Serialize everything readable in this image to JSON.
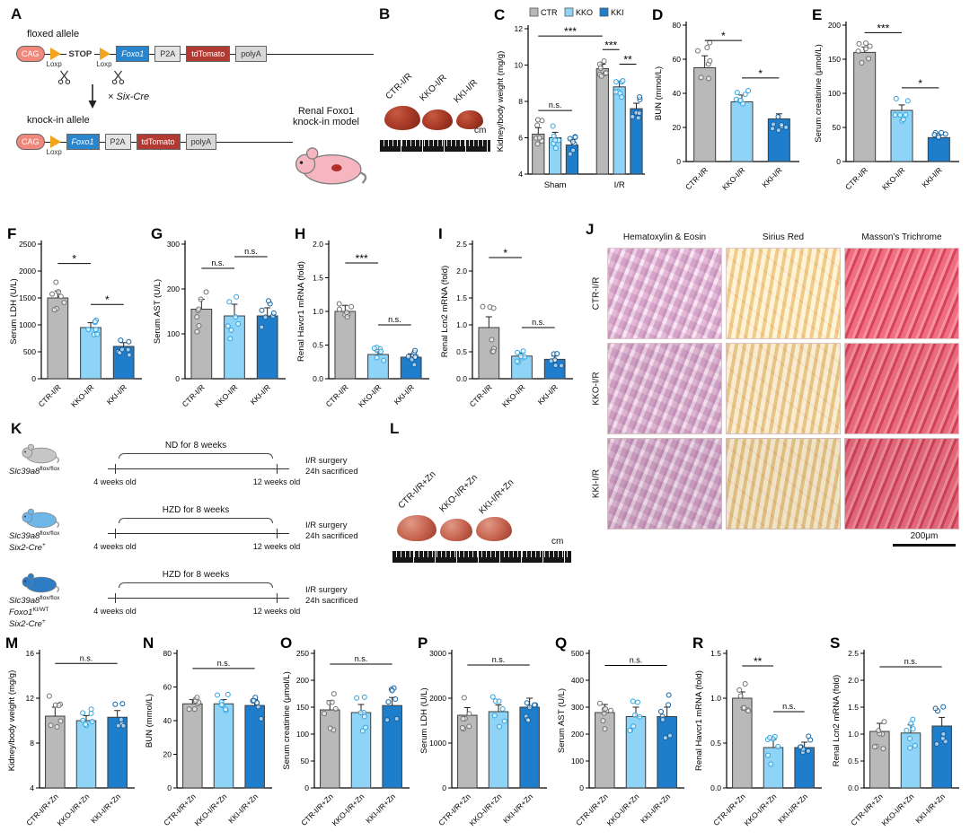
{
  "panel_a": {
    "label": "A",
    "floxed_label": "floxed allele",
    "knockin_label": "knock-in allele",
    "cross_label": "× Six-Cre",
    "model_label": "Renal Foxo1\nknock-in model",
    "floxed_row": [
      {
        "type": "box",
        "text": "CAG",
        "bg": "#f0897c",
        "fg": "#ffffff",
        "round": true
      },
      {
        "type": "loxp",
        "label": "Loxp"
      },
      {
        "type": "text",
        "text": "STOP"
      },
      {
        "type": "loxp",
        "label": "Loxp"
      },
      {
        "type": "box",
        "text": "Foxo1",
        "bg": "#2a86cc",
        "fg": "#ffffff",
        "italic": true
      },
      {
        "type": "box",
        "text": "P2A",
        "bg": "#e4e4e4",
        "fg": "#333333"
      },
      {
        "type": "box",
        "text": "tdTomato",
        "bg": "#b23a32",
        "fg": "#ffffff"
      },
      {
        "type": "box",
        "text": "polyA",
        "bg": "#d8d8d8",
        "fg": "#333333"
      }
    ],
    "knockin_row": [
      {
        "type": "box",
        "text": "CAG",
        "bg": "#f0897c",
        "fg": "#ffffff",
        "round": true
      },
      {
        "type": "loxp",
        "label": "Loxp"
      },
      {
        "type": "box",
        "text": "Foxo1",
        "bg": "#2a86cc",
        "fg": "#ffffff",
        "italic": true
      },
      {
        "type": "box",
        "text": "P2A",
        "bg": "#e4e4e4",
        "fg": "#333333"
      },
      {
        "type": "box",
        "text": "tdTomato",
        "bg": "#b23a32",
        "fg": "#ffffff"
      },
      {
        "type": "box",
        "text": "polyA",
        "bg": "#d8d8d8",
        "fg": "#333333"
      }
    ]
  },
  "panel_b": {
    "label": "B",
    "samples": [
      "CTR-I/R",
      "KKO-I/R",
      "KKI-I/R"
    ],
    "ruler_unit": "cm"
  },
  "panel_j": {
    "label": "J",
    "columns": [
      "Hematoxylin & Eosin",
      "Sirius Red",
      "Masson's Trichrome"
    ],
    "rows": [
      "CTR-I/R",
      "KKO-I/R",
      "KKI-I/R"
    ],
    "scale_bar": "200μm"
  },
  "panel_k": {
    "label": "K",
    "rows": [
      {
        "strain": [
          {
            "t": "Slc39a8",
            "sup": "flox/flox"
          }
        ],
        "diet": "ND for 8 weeks",
        "start": "4 weeks old",
        "end": "12 weeks old",
        "surgery": "I/R surgery",
        "sacrifice": "24h sacrificed",
        "mouse_color": "#c6c6c6"
      },
      {
        "strain": [
          {
            "t": "Slc39a8",
            "sup": "flox/flox"
          },
          {
            "t": "Six2-Cre",
            "sup": "+"
          }
        ],
        "diet": "HZD for 8 weeks",
        "start": "4 weeks old",
        "end": "12 weeks old",
        "surgery": "I/R surgery",
        "sacrifice": "24h sacrificed",
        "mouse_color": "#6fb6e9"
      },
      {
        "strain": [
          {
            "t": "Slc39a8",
            "sup": "flox/flox"
          },
          {
            "t": "Foxo1",
            "sup": "KI/WT"
          },
          {
            "t": "Six2-Cre",
            "sup": "+"
          }
        ],
        "diet": "HZD for 8 weeks",
        "start": "4 weeks old",
        "end": "12 weeks old",
        "surgery": "I/R surgery",
        "sacrifice": "24h sacrificed",
        "mouse_color": "#2e7cc3"
      }
    ]
  },
  "panel_l": {
    "label": "L",
    "samples": [
      "CTR-I/R+Zn",
      "KKO-I/R+Zn",
      "KKI-I/R+Zn"
    ],
    "ruler_unit": "cm"
  },
  "colors": {
    "ctr": "#b9b9b9",
    "kko": "#8fd4f6",
    "kki": "#1f7ecb"
  },
  "chart_data": [
    {
      "id": "c",
      "panel": "C",
      "type": "bar",
      "ylabel": "Kidney/body weight (mg/g)",
      "ylim": [
        4,
        12
      ],
      "yticks": [
        "4",
        "6",
        "8",
        "10",
        "12"
      ],
      "legend": [
        "CTR",
        "KKO",
        "KKI"
      ],
      "groups": [
        "Sham",
        "I/R"
      ],
      "categories": [
        "Sham CTR",
        "Sham KKO",
        "Sham KKI",
        "I/R CTR",
        "I/R KKO",
        "I/R KKI"
      ],
      "values": [
        6.2,
        6.0,
        5.6,
        9.8,
        8.8,
        7.6
      ],
      "errors": [
        0.35,
        0.3,
        0.3,
        0.25,
        0.3,
        0.3
      ],
      "colors": [
        "#b9b9b9",
        "#8fd4f6",
        "#1f7ecb",
        "#b9b9b9",
        "#8fd4f6",
        "#1f7ecb"
      ],
      "point_colors": [
        "#6f6f6f",
        "#2fa3e0",
        "#135f9e",
        "#6f6f6f",
        "#2fa3e0",
        "#135f9e"
      ],
      "sig": [
        {
          "a": 0,
          "b": 2,
          "y": 7.5,
          "label": "n.s."
        },
        {
          "a": 0,
          "b": 3,
          "y": 11.6,
          "label": "***"
        },
        {
          "a": 3,
          "b": 4,
          "y": 10.85,
          "label": "***"
        },
        {
          "a": 4,
          "b": 5,
          "y": 10.05,
          "label": "**"
        }
      ]
    },
    {
      "id": "d",
      "panel": "D",
      "type": "bar",
      "ylabel": "BUN (mmol/L)",
      "ylim": [
        0,
        80
      ],
      "yticks": [
        "0",
        "20",
        "40",
        "60",
        "80"
      ],
      "categories": [
        "CTR-I/R",
        "KKO-I/R",
        "KKI-I/R"
      ],
      "values": [
        55,
        35,
        25
      ],
      "errors": [
        7,
        4,
        3
      ],
      "colors": [
        "#b9b9b9",
        "#8fd4f6",
        "#1f7ecb"
      ],
      "point_colors": [
        "#6f6f6f",
        "#2fa3e0",
        "#135f9e"
      ],
      "sig": [
        {
          "a": 0,
          "b": 1,
          "y": 71,
          "label": "*"
        },
        {
          "a": 1,
          "b": 2,
          "y": 49,
          "label": "*"
        }
      ]
    },
    {
      "id": "e",
      "panel": "E",
      "type": "bar",
      "ylabel": "Serum creatinine (μmol/L)",
      "ylim": [
        0,
        200
      ],
      "yticks": [
        "0",
        "50",
        "100",
        "150",
        "200"
      ],
      "categories": [
        "CTR-I/R",
        "KKO-I/R",
        "KKI-I/R"
      ],
      "values": [
        160,
        75,
        35
      ],
      "errors": [
        8,
        8,
        4
      ],
      "colors": [
        "#b9b9b9",
        "#8fd4f6",
        "#1f7ecb"
      ],
      "point_colors": [
        "#6f6f6f",
        "#2fa3e0",
        "#135f9e"
      ],
      "sig": [
        {
          "a": 0,
          "b": 1,
          "y": 189,
          "label": "***"
        },
        {
          "a": 1,
          "b": 2,
          "y": 108,
          "label": "*"
        }
      ]
    },
    {
      "id": "f",
      "panel": "F",
      "type": "bar",
      "ylabel": "Serum LDH (U/L)",
      "ylim": [
        0,
        2500
      ],
      "yticks": [
        "0",
        "500",
        "1000",
        "1500",
        "2000",
        "2500"
      ],
      "categories": [
        "CTR-I/R",
        "KKO-I/R",
        "KKI-I/R"
      ],
      "values": [
        1500,
        950,
        600
      ],
      "errors": [
        130,
        90,
        70
      ],
      "colors": [
        "#b9b9b9",
        "#8fd4f6",
        "#1f7ecb"
      ],
      "point_colors": [
        "#6f6f6f",
        "#2fa3e0",
        "#135f9e"
      ],
      "sig": [
        {
          "a": 0,
          "b": 1,
          "y": 2140,
          "label": "*"
        },
        {
          "a": 1,
          "b": 2,
          "y": 1380,
          "label": "*"
        }
      ]
    },
    {
      "id": "g",
      "panel": "G",
      "type": "bar",
      "ylabel": "Serum AST (U/L)",
      "ylim": [
        0,
        300
      ],
      "yticks": [
        "0",
        "100",
        "200",
        "300"
      ],
      "categories": [
        "CTR-I/R",
        "KKO-I/R",
        "KKI-I/R"
      ],
      "values": [
        155,
        140,
        140
      ],
      "errors": [
        22,
        26,
        18
      ],
      "colors": [
        "#b9b9b9",
        "#8fd4f6",
        "#1f7ecb"
      ],
      "point_colors": [
        "#6f6f6f",
        "#2fa3e0",
        "#135f9e"
      ],
      "sig": [
        {
          "a": 0,
          "b": 1,
          "y": 246,
          "label": "n.s."
        },
        {
          "a": 1,
          "b": 2,
          "y": 272,
          "label": "n.s."
        }
      ]
    },
    {
      "id": "h",
      "panel": "H",
      "type": "bar",
      "ylabel": "Renal Havcr1 mRNA (fold)",
      "ylim": [
        0,
        2
      ],
      "yticks": [
        "0.0",
        "0.5",
        "1.0",
        "1.5",
        "2.0"
      ],
      "categories": [
        "CTR-I/R",
        "KKO-I/R",
        "KKI-I/R"
      ],
      "values": [
        1.0,
        0.36,
        0.32
      ],
      "errors": [
        0.09,
        0.05,
        0.05
      ],
      "colors": [
        "#b9b9b9",
        "#8fd4f6",
        "#1f7ecb"
      ],
      "point_colors": [
        "#6f6f6f",
        "#2fa3e0",
        "#135f9e"
      ],
      "sig": [
        {
          "a": 0,
          "b": 1,
          "y": 1.72,
          "label": "***"
        },
        {
          "a": 1,
          "b": 2,
          "y": 0.8,
          "label": "n.s."
        }
      ]
    },
    {
      "id": "i",
      "panel": "I",
      "type": "bar",
      "ylabel": "Renal Lcn2 mRNA (fold)",
      "ylim": [
        0,
        2.5
      ],
      "yticks": [
        "0.0",
        "0.5",
        "1.0",
        "1.5",
        "2.0",
        "2.5"
      ],
      "categories": [
        "CTR-I/R",
        "KKO-I/R",
        "KKI-I/R"
      ],
      "values": [
        0.95,
        0.42,
        0.36
      ],
      "errors": [
        0.2,
        0.06,
        0.06
      ],
      "colors": [
        "#b9b9b9",
        "#8fd4f6",
        "#1f7ecb"
      ],
      "point_colors": [
        "#6f6f6f",
        "#2fa3e0",
        "#135f9e"
      ],
      "sig": [
        {
          "a": 0,
          "b": 1,
          "y": 2.25,
          "label": "*"
        },
        {
          "a": 1,
          "b": 2,
          "y": 0.95,
          "label": "n.s."
        }
      ]
    },
    {
      "id": "m",
      "panel": "M",
      "type": "bar",
      "ylabel": "Kidney/body weight (mg/g)",
      "ylim": [
        4,
        16
      ],
      "yticks": [
        "4",
        "8",
        "12",
        "16"
      ],
      "categories": [
        "CTR-I/R+Zn",
        "KKO-I/R+Zn",
        "KKI-I/R+Zn"
      ],
      "values": [
        10.4,
        10.0,
        10.3
      ],
      "errors": [
        0.8,
        0.45,
        0.6
      ],
      "colors": [
        "#b9b9b9",
        "#8fd4f6",
        "#1f7ecb"
      ],
      "point_colors": [
        "#6f6f6f",
        "#2fa3e0",
        "#135f9e"
      ],
      "sig": [
        {
          "a": 0,
          "b": 2,
          "y": 15.1,
          "label": "n.s."
        }
      ]
    },
    {
      "id": "n",
      "panel": "N",
      "type": "bar",
      "ylabel": "BUN (mmol/L)",
      "ylim": [
        0,
        80
      ],
      "yticks": [
        "0",
        "20",
        "40",
        "60",
        "80"
      ],
      "categories": [
        "CTR-I/R+Zn",
        "KKO-I/R+Zn",
        "KKI-I/R+Zn"
      ],
      "values": [
        50,
        50,
        49
      ],
      "errors": [
        2.5,
        2.5,
        3.5
      ],
      "colors": [
        "#b9b9b9",
        "#8fd4f6",
        "#1f7ecb"
      ],
      "point_colors": [
        "#6f6f6f",
        "#2fa3e0",
        "#135f9e"
      ],
      "sig": [
        {
          "a": 0,
          "b": 2,
          "y": 71,
          "label": "n.s."
        }
      ]
    },
    {
      "id": "o",
      "panel": "O",
      "type": "bar",
      "ylabel": "Serum creatinine (μmol/L)",
      "ylim": [
        0,
        250
      ],
      "yticks": [
        "0",
        "50",
        "100",
        "150",
        "200",
        "250"
      ],
      "categories": [
        "CTR-I/R+Zn",
        "KKO-I/R+Zn",
        "KKI-I/R+Zn"
      ],
      "values": [
        145,
        140,
        153
      ],
      "errors": [
        17,
        15,
        15
      ],
      "colors": [
        "#b9b9b9",
        "#8fd4f6",
        "#1f7ecb"
      ],
      "point_colors": [
        "#6f6f6f",
        "#2fa3e0",
        "#135f9e"
      ],
      "sig": [
        {
          "a": 0,
          "b": 2,
          "y": 230,
          "label": "n.s."
        }
      ]
    },
    {
      "id": "p",
      "panel": "P",
      "type": "bar",
      "ylabel": "Serum LDH (U/L)",
      "ylim": [
        0,
        3000
      ],
      "yticks": [
        "0",
        "1000",
        "2000",
        "3000"
      ],
      "categories": [
        "CTR-I/R+Zn",
        "KKO-I/R+Zn",
        "KKI-I/R+Zn"
      ],
      "values": [
        1620,
        1700,
        1800
      ],
      "errors": [
        170,
        150,
        200
      ],
      "colors": [
        "#b9b9b9",
        "#8fd4f6",
        "#1f7ecb"
      ],
      "point_colors": [
        "#6f6f6f",
        "#2fa3e0",
        "#135f9e"
      ],
      "sig": [
        {
          "a": 0,
          "b": 2,
          "y": 2740,
          "label": "n.s."
        }
      ]
    },
    {
      "id": "q",
      "panel": "Q",
      "type": "bar",
      "ylabel": "Serum AST (U/L)",
      "ylim": [
        0,
        500
      ],
      "yticks": [
        "0",
        "100",
        "200",
        "300",
        "400",
        "500"
      ],
      "categories": [
        "CTR-I/R+Zn",
        "KKO-I/R+Zn",
        "KKI-I/R+Zn"
      ],
      "values": [
        280,
        265,
        265
      ],
      "errors": [
        30,
        35,
        35
      ],
      "colors": [
        "#b9b9b9",
        "#8fd4f6",
        "#1f7ecb"
      ],
      "point_colors": [
        "#6f6f6f",
        "#2fa3e0",
        "#135f9e"
      ],
      "sig": [
        {
          "a": 0,
          "b": 2,
          "y": 455,
          "label": "n.s."
        }
      ]
    },
    {
      "id": "r",
      "panel": "R",
      "type": "bar",
      "ylabel": "Renal Havcr1 mRNA (fold)",
      "ylim": [
        0,
        1.5
      ],
      "yticks": [
        "0.0",
        "0.5",
        "1.0",
        "1.5"
      ],
      "categories": [
        "CTR-I/R+Zn",
        "KKO-I/R+Zn",
        "KKI-I/R+Zn"
      ],
      "values": [
        1.0,
        0.45,
        0.45
      ],
      "errors": [
        0.07,
        0.09,
        0.06
      ],
      "colors": [
        "#b9b9b9",
        "#8fd4f6",
        "#1f7ecb"
      ],
      "point_colors": [
        "#6f6f6f",
        "#2fa3e0",
        "#135f9e"
      ],
      "sig": [
        {
          "a": 0,
          "b": 1,
          "y": 1.36,
          "label": "**"
        },
        {
          "a": 1,
          "b": 2,
          "y": 0.85,
          "label": "n.s."
        }
      ]
    },
    {
      "id": "s",
      "panel": "S",
      "type": "bar",
      "ylabel": "Renal Lcn2 mRNA (fold)",
      "ylim": [
        0,
        2.5
      ],
      "yticks": [
        "0.0",
        "0.5",
        "1.0",
        "1.5",
        "2.0",
        "2.5"
      ],
      "categories": [
        "CTR-I/R+Zn",
        "KKO-I/R+Zn",
        "KKI-I/R+Zn"
      ],
      "values": [
        1.05,
        1.02,
        1.15
      ],
      "errors": [
        0.15,
        0.15,
        0.16
      ],
      "colors": [
        "#b9b9b9",
        "#8fd4f6",
        "#1f7ecb"
      ],
      "point_colors": [
        "#6f6f6f",
        "#2fa3e0",
        "#135f9e"
      ],
      "sig": [
        {
          "a": 0,
          "b": 2,
          "y": 2.25,
          "label": "n.s."
        }
      ]
    }
  ]
}
